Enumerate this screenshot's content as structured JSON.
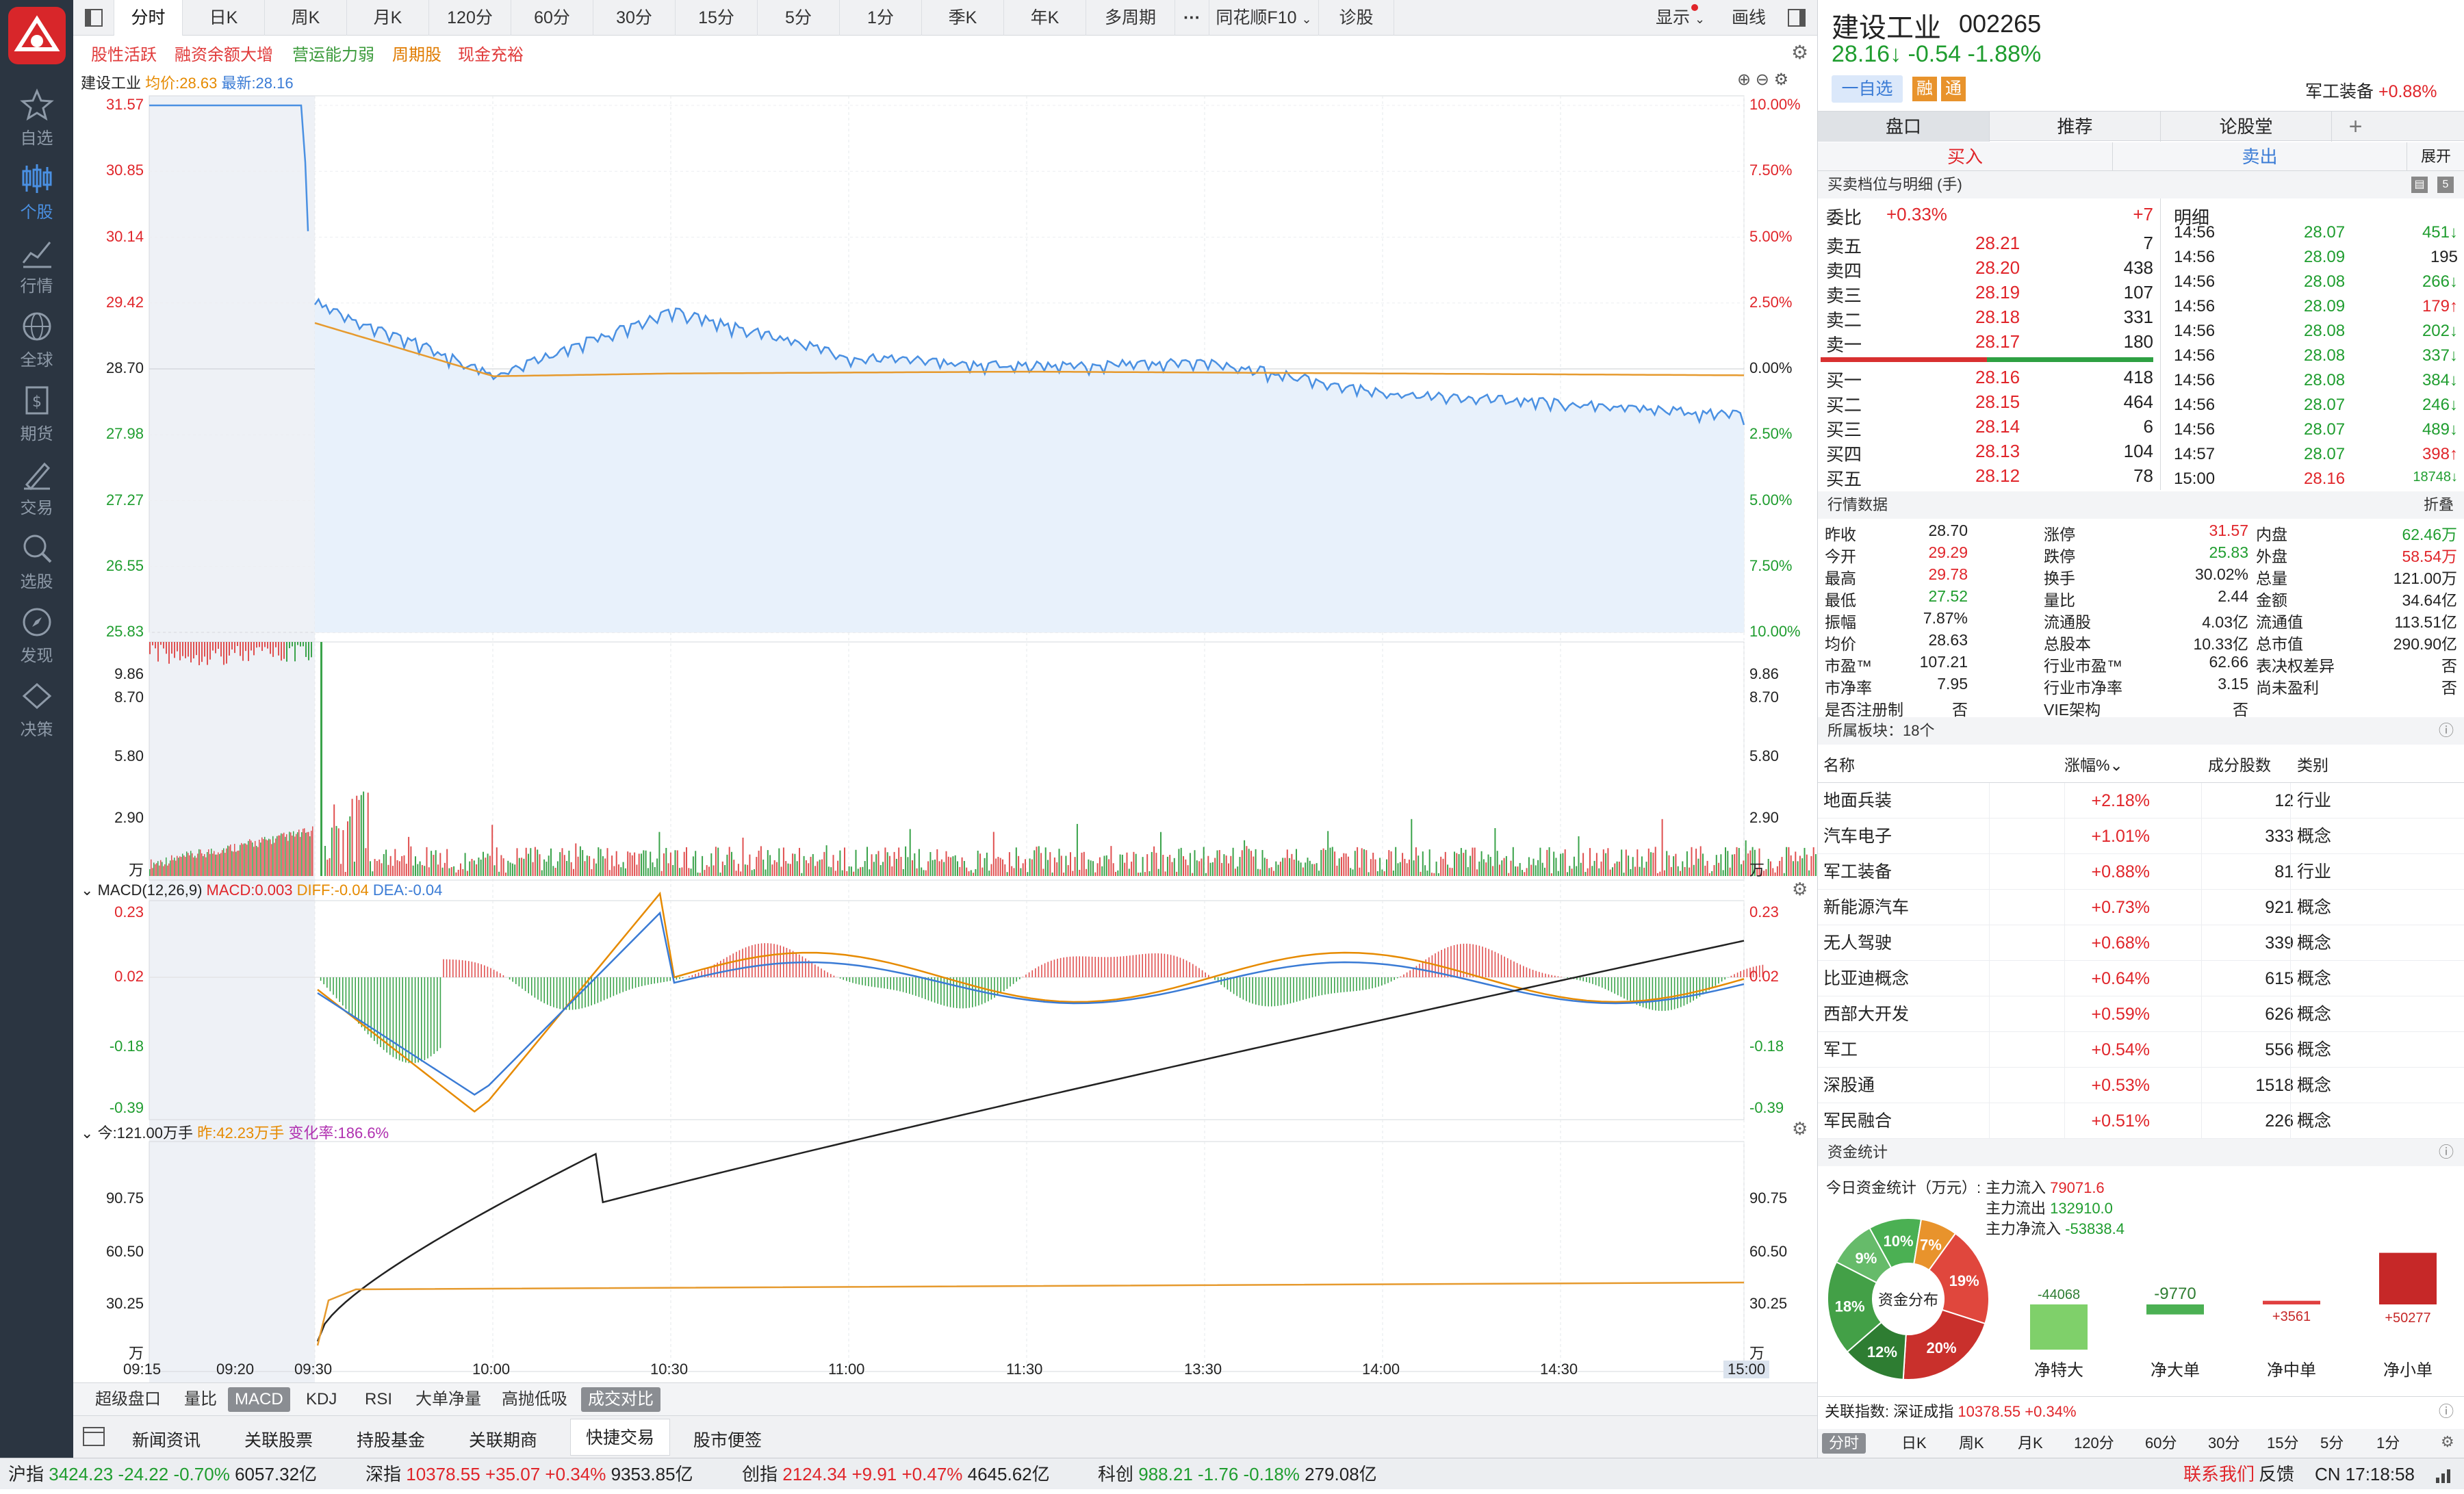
{
  "sidebar": {
    "items": [
      "自选",
      "个股",
      "行情",
      "全球",
      "期货",
      "交易",
      "选股",
      "发现",
      "决策"
    ]
  },
  "toptabs": [
    "分时",
    "日K",
    "周K",
    "月K",
    "120分",
    "60分",
    "30分",
    "15分",
    "5分",
    "1分",
    "季K",
    "年K",
    "多周期",
    "···",
    "同花顺F10",
    "诊股"
  ],
  "toptabs_right": {
    "display": "显示",
    "draw": "画线"
  },
  "tags": [
    "股性活跃",
    "融资余额大增",
    "营运能力弱",
    "周期股",
    "现金充裕"
  ],
  "main_legend": {
    "name": "建设工业",
    "avg": "均价:28.63",
    "latest": "最新:28.16"
  },
  "price_axis_left": [
    "31.57",
    "30.85",
    "30.14",
    "29.42",
    "28.70",
    "27.98",
    "27.27",
    "26.55",
    "25.83"
  ],
  "price_axis_right": [
    "10.00%",
    "7.50%",
    "5.00%",
    "2.50%",
    "0.00%",
    "2.50%",
    "5.00%",
    "7.50%",
    "10.00%"
  ],
  "vol_axis": [
    "9.86",
    "8.70",
    "5.80",
    "2.90",
    "万"
  ],
  "macd_legend": {
    "name": "MACD(12,26,9)",
    "macd": "MACD:0.003",
    "diff": "DIFF:-0.04",
    "dea": "DEA:-0.04"
  },
  "macd_axis": [
    "0.23",
    "0.02",
    "-0.18",
    "-0.39"
  ],
  "cum_legend": {
    "today": "今:121.00万手",
    "yest": "昨:42.23万手",
    "rate": "变化率:186.6%"
  },
  "cum_axis": [
    "90.75",
    "60.50",
    "30.25",
    "万"
  ],
  "time_axis": [
    "09:15",
    "09:20",
    "09:30",
    "10:00",
    "10:30",
    "11:00",
    "11:30",
    "13:30",
    "14:00",
    "14:30",
    "15:00"
  ],
  "bottom_tabs": [
    "超级盘口",
    "量比",
    "MACD",
    "KDJ",
    "RSI",
    "大单净量",
    "高抛低吸",
    "成交对比"
  ],
  "news_tabs": [
    "新闻资讯",
    "关联股票",
    "持股基金",
    "关联期商",
    "快捷交易",
    "股市便签"
  ],
  "chart_data": {
    "type": "line",
    "title": "建设工业",
    "x": [
      "09:30",
      "10:00",
      "10:30",
      "11:00",
      "11:30",
      "13:30",
      "14:00",
      "14:30",
      "15:00"
    ],
    "series": [
      {
        "name": "最新",
        "values": [
          29.4,
          28.6,
          29.3,
          28.8,
          28.7,
          28.75,
          28.4,
          28.3,
          28.16
        ]
      },
      {
        "name": "均价",
        "values": [
          29.2,
          28.62,
          28.65,
          28.66,
          28.67,
          28.66,
          28.65,
          28.64,
          28.63
        ]
      }
    ],
    "ylim": [
      25.83,
      31.57
    ],
    "ylabel": ""
  },
  "stock": {
    "name": "建设工业",
    "code": "002265",
    "price": "28.16↓",
    "change": "-0.54",
    "pct": "-1.88%",
    "watch": "一自选",
    "tag1": "融",
    "tag2": "通",
    "sector": "军工装备",
    "sector_pct": "+0.88%"
  },
  "rtabs": [
    "盘口",
    "推荐",
    "论股堂",
    "+"
  ],
  "trade": {
    "buy": "买入",
    "sell": "卖出",
    "expand": "展开"
  },
  "book_title": "买卖档位与明细 (手)",
  "weibi": {
    "label": "委比",
    "pct": "+0.33%",
    "diff": "+7"
  },
  "detail_label": "明细",
  "asks": [
    [
      "卖五",
      "28.21",
      "7"
    ],
    [
      "卖四",
      "28.20",
      "438"
    ],
    [
      "卖三",
      "28.19",
      "107"
    ],
    [
      "卖二",
      "28.18",
      "331"
    ],
    [
      "卖一",
      "28.17",
      "180"
    ]
  ],
  "bids": [
    [
      "买一",
      "28.16",
      "418"
    ],
    [
      "买二",
      "28.15",
      "464"
    ],
    [
      "买三",
      "28.14",
      "6"
    ],
    [
      "买四",
      "28.13",
      "104"
    ],
    [
      "买五",
      "28.12",
      "78"
    ]
  ],
  "ticks": [
    [
      "14:56",
      "28.07",
      "451↓"
    ],
    [
      "14:56",
      "28.09",
      "195"
    ],
    [
      "14:56",
      "28.08",
      "266↓"
    ],
    [
      "14:56",
      "28.09",
      "179↑"
    ],
    [
      "14:56",
      "28.08",
      "202↓"
    ],
    [
      "14:56",
      "28.08",
      "337↓"
    ],
    [
      "14:56",
      "28.08",
      "384↓"
    ],
    [
      "14:56",
      "28.07",
      "246↓"
    ],
    [
      "14:56",
      "28.07",
      "489↓"
    ],
    [
      "14:57",
      "28.07",
      "398↑"
    ],
    [
      "15:00",
      "28.16",
      "18748↓"
    ]
  ],
  "quote_title": "行情数据",
  "quote_fold": "折叠",
  "quote": [
    [
      "昨收",
      "28.70",
      "涨停",
      "31.57",
      "内盘",
      "62.46万"
    ],
    [
      "今开",
      "29.29",
      "跌停",
      "25.83",
      "外盘",
      "58.54万"
    ],
    [
      "最高",
      "29.78",
      "换手",
      "30.02%",
      "总量",
      "121.00万"
    ],
    [
      "最低",
      "27.52",
      "量比",
      "2.44",
      "金额",
      "34.64亿"
    ],
    [
      "振幅",
      "7.87%",
      "流通股",
      "4.03亿",
      "流通值",
      "113.51亿"
    ],
    [
      "均价",
      "28.63",
      "总股本",
      "10.33亿",
      "总市值",
      "290.90亿"
    ],
    [
      "市盈™",
      "107.21",
      "行业市盈™",
      "62.66",
      "表决权差异",
      "否"
    ],
    [
      "市净率",
      "7.95",
      "行业市净率",
      "3.15",
      "尚未盈利",
      "否"
    ],
    [
      "是否注册制",
      "否",
      "VIE架构",
      "否",
      "",
      ""
    ]
  ],
  "blocks_title": "所属板块：18个",
  "blocks_head": [
    "名称",
    "涨幅%",
    "成分股数",
    "类别"
  ],
  "blocks": [
    [
      "地面兵装",
      "+2.18%",
      "12",
      "行业"
    ],
    [
      "汽车电子",
      "+1.01%",
      "333",
      "概念"
    ],
    [
      "军工装备",
      "+0.88%",
      "81",
      "行业"
    ],
    [
      "新能源汽车",
      "+0.73%",
      "921",
      "概念"
    ],
    [
      "无人驾驶",
      "+0.68%",
      "339",
      "概念"
    ],
    [
      "比亚迪概念",
      "+0.64%",
      "615",
      "概念"
    ],
    [
      "西部大开发",
      "+0.59%",
      "626",
      "概念"
    ],
    [
      "军工",
      "+0.54%",
      "556",
      "概念"
    ],
    [
      "深股通",
      "+0.53%",
      "1518",
      "概念"
    ],
    [
      "军民融合",
      "+0.51%",
      "226",
      "概念"
    ]
  ],
  "fund_title": "资金统计",
  "fund": {
    "label": "今日资金统计（万元）:",
    "in_label": "主力流入",
    "in": "79071.6",
    "out_label": "主力流出",
    "out": "132910.0",
    "net_label": "主力净流入",
    "net": "-53838.4",
    "donut": "资金分布"
  },
  "donut_pcts": [
    "10%",
    "7%",
    "19%",
    "20%",
    "12%",
    "18%",
    "9%"
  ],
  "fund_bars": [
    [
      "净特大",
      "-44068"
    ],
    [
      "净大单",
      "-9770"
    ],
    [
      "净中单",
      "+3561"
    ],
    [
      "净小单",
      "+50277"
    ]
  ],
  "related": {
    "label": "关联指数:",
    "name": "深证成指",
    "value": "10378.55",
    "pct": "+0.34%"
  },
  "rbottom_tabs": [
    "分时",
    "日K",
    "周K",
    "月K",
    "120分",
    "60分",
    "30分",
    "15分",
    "5分",
    "1分"
  ],
  "status": {
    "sh": [
      "沪指",
      "3424.23",
      "-24.22",
      "-0.70%",
      "6057.32亿"
    ],
    "sz": [
      "深指",
      "10378.55",
      "+35.07",
      "+0.34%",
      "9353.85亿"
    ],
    "cy": [
      "创指",
      "2124.34",
      "+9.91",
      "+0.47%",
      "4645.62亿"
    ],
    "kc": [
      "科创",
      "988.21",
      "-1.76",
      "-0.18%",
      "279.08亿"
    ],
    "contact": "联系我们",
    "feedback": "反馈",
    "time": "CN 17:18:58"
  }
}
